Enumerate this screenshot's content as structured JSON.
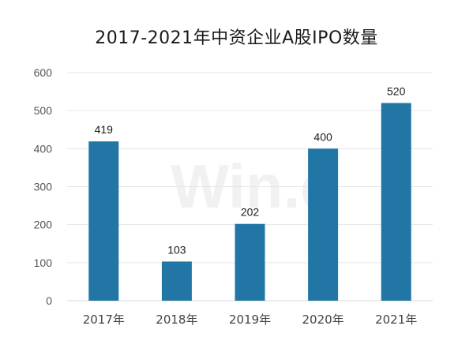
{
  "title": "2017-2021年中资企业A股IPO数量",
  "watermark": "Win.d",
  "colors": {
    "bar": "#2276a6",
    "grid": "#e6e6e6",
    "axis": "#d9d9d9"
  },
  "chart_data": {
    "type": "bar",
    "title": "2017-2021年中资企业A股IPO数量",
    "categories": [
      "2017年",
      "2018年",
      "2019年",
      "2020年",
      "2021年"
    ],
    "values": [
      419,
      103,
      202,
      400,
      520
    ],
    "data_labels": [
      "419",
      "103",
      "202",
      "400",
      "520"
    ],
    "y_ticks": [
      "0",
      "100",
      "200",
      "300",
      "400",
      "500",
      "600"
    ],
    "ylim": [
      0,
      600
    ],
    "xlabel": "",
    "ylabel": "",
    "grid": true,
    "legend": "none"
  }
}
